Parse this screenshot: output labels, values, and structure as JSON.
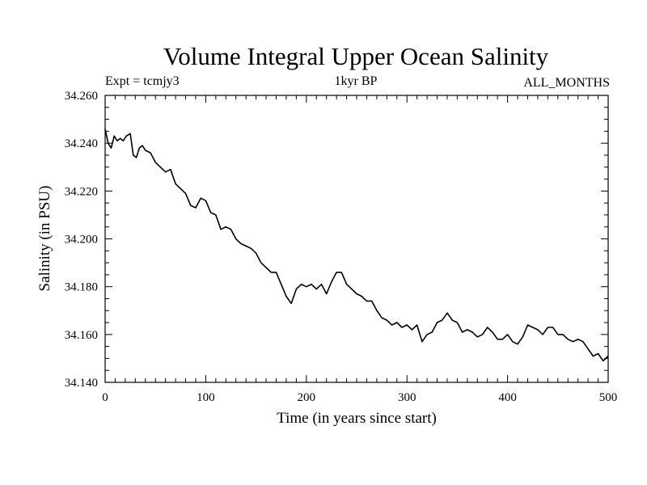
{
  "chart_data": {
    "type": "line",
    "title": "Volume Integral Upper Ocean Salinity",
    "subtitle_left": "Expt = tcmjy3",
    "subtitle_center": "1kyr BP",
    "subtitle_right": "ALL_MONTHS",
    "xlabel": "Time (in years since start)",
    "ylabel": "Salinity (in PSU)",
    "xlim": [
      0,
      500
    ],
    "ylim": [
      34.14,
      34.26
    ],
    "xticks": [
      "0",
      "100",
      "200",
      "300",
      "400",
      "500"
    ],
    "yticks": [
      "34.140",
      "34.160",
      "34.180",
      "34.200",
      "34.220",
      "34.240",
      "34.260"
    ],
    "grid": false,
    "series": [
      {
        "x": [
          0,
          3,
          6,
          9,
          12,
          15,
          18,
          21,
          25,
          28,
          31,
          34,
          37,
          40,
          45,
          50,
          55,
          60,
          65,
          70,
          75,
          80,
          85,
          90,
          95,
          100,
          105,
          110,
          115,
          120,
          125,
          130,
          135,
          140,
          145,
          150,
          155,
          160,
          165,
          170,
          175,
          180,
          185,
          190,
          195,
          200,
          205,
          210,
          215,
          220,
          225,
          230,
          235,
          240,
          245,
          250,
          255,
          260,
          265,
          270,
          275,
          280,
          285,
          290,
          295,
          300,
          305,
          310,
          315,
          320,
          325,
          330,
          335,
          340,
          345,
          350,
          355,
          360,
          365,
          370,
          375,
          380,
          385,
          390,
          395,
          400,
          405,
          410,
          415,
          420,
          425,
          430,
          435,
          440,
          445,
          450,
          455,
          460,
          465,
          470,
          475,
          480,
          485,
          490,
          495,
          500
        ],
        "values": [
          34.246,
          34.24,
          34.238,
          34.243,
          34.241,
          34.242,
          34.241,
          34.243,
          34.244,
          34.235,
          34.234,
          34.238,
          34.239,
          34.237,
          34.236,
          34.232,
          34.23,
          34.228,
          34.229,
          34.223,
          34.221,
          34.219,
          34.214,
          34.213,
          34.217,
          34.216,
          34.211,
          34.21,
          34.204,
          34.205,
          34.204,
          34.2,
          34.198,
          34.197,
          34.196,
          34.194,
          34.19,
          34.188,
          34.186,
          34.186,
          34.181,
          34.176,
          34.173,
          34.179,
          34.181,
          34.18,
          34.181,
          34.179,
          34.181,
          34.177,
          34.182,
          34.186,
          34.186,
          34.181,
          34.179,
          34.177,
          34.176,
          34.174,
          34.174,
          34.17,
          34.167,
          34.166,
          34.164,
          34.165,
          34.163,
          34.164,
          34.162,
          34.164,
          34.157,
          34.16,
          34.161,
          34.165,
          34.166,
          34.169,
          34.166,
          34.165,
          34.161,
          34.162,
          34.161,
          34.159,
          34.16,
          34.163,
          34.161,
          34.158,
          34.158,
          34.16,
          34.157,
          34.156,
          34.159,
          34.164,
          34.163,
          34.162,
          34.16,
          34.163,
          34.163,
          34.16,
          34.16,
          34.158,
          34.157,
          34.158,
          34.157,
          34.154,
          34.151,
          34.152,
          34.149,
          34.151
        ]
      }
    ]
  }
}
